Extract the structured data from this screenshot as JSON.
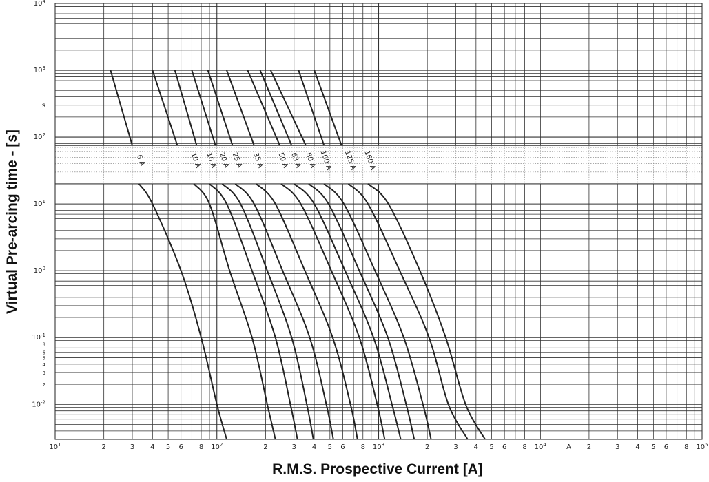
{
  "chart_data": {
    "type": "line",
    "title": "",
    "xlabel": "R.M.S. Prospective Current [A]",
    "ylabel": "Virtual Pre-arcing time - [s]",
    "xscale": "log",
    "yscale": "log",
    "xlim": [
      10,
      100000
    ],
    "ylim": [
      0.003,
      10000
    ],
    "grid": true,
    "x_tick_labels": [
      {
        "v": 10,
        "base": "10",
        "exp": "1"
      },
      {
        "v": 20,
        "base": "2"
      },
      {
        "v": 30,
        "base": "3"
      },
      {
        "v": 40,
        "base": "4"
      },
      {
        "v": 50,
        "base": "5"
      },
      {
        "v": 60,
        "base": "6"
      },
      {
        "v": 80,
        "base": "8"
      },
      {
        "v": 100,
        "base": "10",
        "exp": "2"
      },
      {
        "v": 200,
        "base": "2"
      },
      {
        "v": 300,
        "base": "3"
      },
      {
        "v": 400,
        "base": "4"
      },
      {
        "v": 500,
        "base": "5"
      },
      {
        "v": 600,
        "base": "6"
      },
      {
        "v": 800,
        "base": "8"
      },
      {
        "v": 1000,
        "base": "10",
        "exp": "3"
      },
      {
        "v": 2000,
        "base": "2"
      },
      {
        "v": 3000,
        "base": "3"
      },
      {
        "v": 4000,
        "base": "4"
      },
      {
        "v": 5000,
        "base": "5"
      },
      {
        "v": 6000,
        "base": "6"
      },
      {
        "v": 8000,
        "base": "8"
      },
      {
        "v": 10000,
        "base": "10",
        "exp": "4"
      },
      {
        "v": 15000,
        "base": "A"
      },
      {
        "v": 20000,
        "base": "2"
      },
      {
        "v": 30000,
        "base": "3"
      },
      {
        "v": 40000,
        "base": "4"
      },
      {
        "v": 50000,
        "base": "5"
      },
      {
        "v": 60000,
        "base": "6"
      },
      {
        "v": 80000,
        "base": "8"
      },
      {
        "v": 100000,
        "base": "10",
        "exp": "5"
      }
    ],
    "y_tick_labels": [
      {
        "v": 10000,
        "base": "10",
        "exp": "4"
      },
      {
        "v": 1000,
        "base": "10",
        "exp": "3"
      },
      {
        "v": 300,
        "base": "s"
      },
      {
        "v": 100,
        "base": "10",
        "exp": "2"
      },
      {
        "v": 10,
        "base": "10",
        "exp": "1"
      },
      {
        "v": 1,
        "base": "10",
        "exp": "0"
      },
      {
        "v": 0.1,
        "base": "10",
        "exp": "-1"
      },
      {
        "v": 0.08,
        "base": "8"
      },
      {
        "v": 0.06,
        "base": "6"
      },
      {
        "v": 0.05,
        "base": "5"
      },
      {
        "v": 0.04,
        "base": "4"
      },
      {
        "v": 0.03,
        "base": "3"
      },
      {
        "v": 0.02,
        "base": "2"
      },
      {
        "v": 0.01,
        "base": "10",
        "exp": "-2"
      }
    ],
    "label_band_ylim": [
      20,
      75
    ],
    "series": [
      {
        "name": "6 A",
        "label_x": 33,
        "upper": [
          [
            22,
            1000
          ],
          [
            30,
            75
          ]
        ],
        "lower": [
          [
            33,
            20
          ],
          [
            40,
            10
          ],
          [
            60,
            1
          ],
          [
            80,
            0.1
          ],
          [
            100,
            0.01
          ],
          [
            115,
            0.003
          ]
        ]
      },
      {
        "name": "10 A",
        "label_x": 72,
        "upper": [
          [
            40,
            1000
          ],
          [
            57,
            75
          ]
        ],
        "lower": [
          [
            72,
            20
          ],
          [
            90,
            10
          ],
          [
            120,
            1
          ],
          [
            165,
            0.1
          ],
          [
            205,
            0.01
          ],
          [
            230,
            0.003
          ]
        ]
      },
      {
        "name": "16 A",
        "label_x": 90,
        "upper": [
          [
            55,
            1000
          ],
          [
            75,
            75
          ]
        ],
        "lower": [
          [
            90,
            20
          ],
          [
            115,
            10
          ],
          [
            165,
            1
          ],
          [
            230,
            0.1
          ],
          [
            285,
            0.01
          ],
          [
            315,
            0.003
          ]
        ]
      },
      {
        "name": "20 A",
        "label_x": 108,
        "upper": [
          [
            70,
            1000
          ],
          [
            98,
            75
          ]
        ],
        "lower": [
          [
            108,
            20
          ],
          [
            140,
            10
          ],
          [
            205,
            1
          ],
          [
            290,
            0.1
          ],
          [
            360,
            0.01
          ],
          [
            395,
            0.003
          ]
        ]
      },
      {
        "name": "25 A",
        "label_x": 130,
        "upper": [
          [
            88,
            1000
          ],
          [
            125,
            75
          ]
        ],
        "lower": [
          [
            130,
            20
          ],
          [
            170,
            10
          ],
          [
            255,
            1
          ],
          [
            375,
            0.1
          ],
          [
            475,
            0.01
          ],
          [
            525,
            0.003
          ]
        ]
      },
      {
        "name": "35 A",
        "label_x": 175,
        "upper": [
          [
            115,
            1000
          ],
          [
            170,
            75
          ]
        ],
        "lower": [
          [
            175,
            20
          ],
          [
            230,
            10
          ],
          [
            350,
            1
          ],
          [
            520,
            0.1
          ],
          [
            670,
            0.01
          ],
          [
            740,
            0.003
          ]
        ]
      },
      {
        "name": "50 A",
        "label_x": 250,
        "upper": [
          [
            155,
            1000
          ],
          [
            245,
            75
          ]
        ],
        "lower": [
          [
            250,
            20
          ],
          [
            330,
            10
          ],
          [
            510,
            1
          ],
          [
            760,
            0.1
          ],
          [
            980,
            0.01
          ],
          [
            1090,
            0.003
          ]
        ]
      },
      {
        "name": "63 A",
        "label_x": 300,
        "upper": [
          [
            185,
            1000
          ],
          [
            290,
            75
          ]
        ],
        "lower": [
          [
            300,
            20
          ],
          [
            400,
            10
          ],
          [
            620,
            1
          ],
          [
            930,
            0.1
          ],
          [
            1210,
            0.01
          ],
          [
            1370,
            0.003
          ]
        ]
      },
      {
        "name": "80 A",
        "label_x": 370,
        "upper": [
          [
            215,
            1000
          ],
          [
            355,
            75
          ]
        ],
        "lower": [
          [
            370,
            20
          ],
          [
            490,
            10
          ],
          [
            760,
            1
          ],
          [
            1140,
            0.1
          ],
          [
            1480,
            0.01
          ],
          [
            1660,
            0.003
          ]
        ]
      },
      {
        "name": "100 A",
        "label_x": 460,
        "upper": [
          [
            320,
            1000
          ],
          [
            460,
            75
          ]
        ],
        "lower": [
          [
            460,
            20
          ],
          [
            610,
            10
          ],
          [
            950,
            1
          ],
          [
            1430,
            0.1
          ],
          [
            1880,
            0.01
          ],
          [
            2110,
            0.003
          ]
        ]
      },
      {
        "name": "125 A",
        "label_x": 650,
        "upper": [
          [
            400,
            1000
          ],
          [
            590,
            75
          ]
        ],
        "lower": [
          [
            650,
            20
          ],
          [
            860,
            10
          ],
          [
            1350,
            1
          ],
          [
            2050,
            0.1
          ],
          [
            2700,
            0.01
          ],
          [
            3550,
            0.003
          ]
        ]
      },
      {
        "name": "160 A",
        "label_x": 860,
        "upper": [],
        "lower": [
          [
            860,
            20
          ],
          [
            1150,
            10
          ],
          [
            1800,
            1
          ],
          [
            2600,
            0.1
          ],
          [
            3450,
            0.01
          ],
          [
            4550,
            0.003
          ]
        ]
      }
    ]
  }
}
